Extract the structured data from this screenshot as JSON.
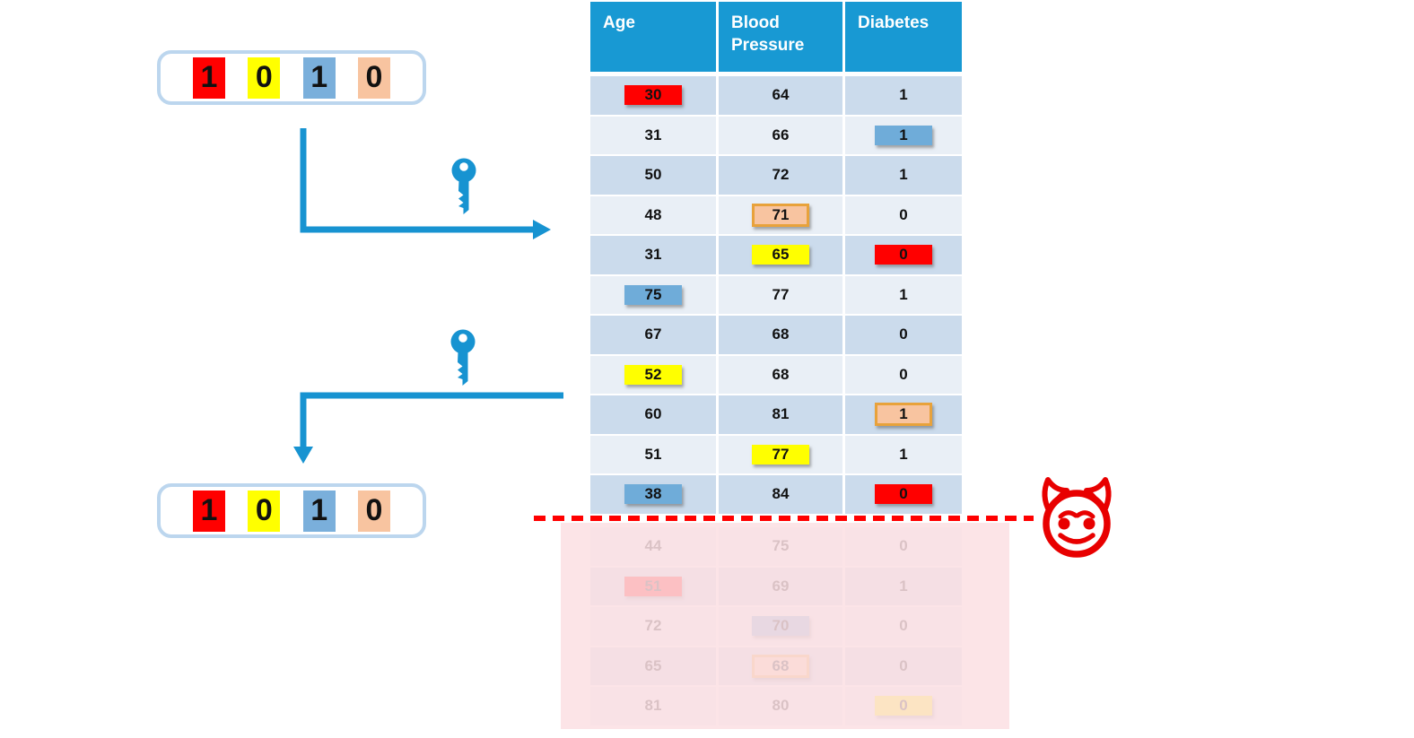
{
  "colors": {
    "header_bg": "#1899D3",
    "row_dark": "#CBDBEC",
    "row_light": "#E9EFF6",
    "arrow_blue": "#1793D1",
    "key_blue": "#1793D1",
    "code_box_border": "#BCD6EE",
    "highlight_red": "#FF0000",
    "highlight_yellow": "#FFFF00",
    "highlight_blue": "#6FACD9",
    "highlight_peach": "#F8C4A0",
    "highlight_peach_border": "#E8A23B",
    "dashed_line_red": "#FF0000",
    "devil_red": "#E80000",
    "redaction_pink": "#FAD6DA"
  },
  "icons": {
    "key": "key-icon",
    "devil": "devil-face-icon"
  },
  "codes": {
    "top": {
      "digits": [
        {
          "v": "1",
          "c": "red"
        },
        {
          "v": "0",
          "c": "yellow"
        },
        {
          "v": "1",
          "c": "blue"
        },
        {
          "v": "0",
          "c": "peach"
        }
      ]
    },
    "bottom": {
      "digits": [
        {
          "v": "1",
          "c": "red"
        },
        {
          "v": "0",
          "c": "yellow"
        },
        {
          "v": "1",
          "c": "blue"
        },
        {
          "v": "0",
          "c": "peach"
        }
      ]
    }
  },
  "table": {
    "headers": [
      {
        "label": "Age"
      },
      {
        "label": "Blood Pressure"
      },
      {
        "label": "Diabetes"
      }
    ],
    "rows": [
      {
        "cells": [
          {
            "v": "30",
            "hl": "red"
          },
          {
            "v": "64"
          },
          {
            "v": "1"
          }
        ]
      },
      {
        "cells": [
          {
            "v": "31"
          },
          {
            "v": "66"
          },
          {
            "v": "1",
            "hl": "blue"
          }
        ]
      },
      {
        "cells": [
          {
            "v": "50"
          },
          {
            "v": "72"
          },
          {
            "v": "1"
          }
        ]
      },
      {
        "cells": [
          {
            "v": "48"
          },
          {
            "v": "71",
            "hl": "peach"
          },
          {
            "v": "0"
          }
        ]
      },
      {
        "cells": [
          {
            "v": "31"
          },
          {
            "v": "65",
            "hl": "yellow"
          },
          {
            "v": "0",
            "hl": "red"
          }
        ]
      },
      {
        "cells": [
          {
            "v": "75",
            "hl": "blue"
          },
          {
            "v": "77"
          },
          {
            "v": "1"
          }
        ]
      },
      {
        "cells": [
          {
            "v": "67"
          },
          {
            "v": "68"
          },
          {
            "v": "0"
          }
        ]
      },
      {
        "cells": [
          {
            "v": "52",
            "hl": "yellow"
          },
          {
            "v": "68"
          },
          {
            "v": "0"
          }
        ]
      },
      {
        "cells": [
          {
            "v": "60"
          },
          {
            "v": "81"
          },
          {
            "v": "1",
            "hl": "peach"
          }
        ]
      },
      {
        "cells": [
          {
            "v": "51"
          },
          {
            "v": "77",
            "hl": "yellow"
          },
          {
            "v": "1"
          }
        ]
      },
      {
        "cells": [
          {
            "v": "38",
            "hl": "blue"
          },
          {
            "v": "84"
          },
          {
            "v": "0",
            "hl": "red"
          }
        ]
      }
    ],
    "faded_rows": [
      {
        "cells": [
          {
            "v": "44"
          },
          {
            "v": "75"
          },
          {
            "v": "0"
          }
        ]
      },
      {
        "cells": [
          {
            "v": "51",
            "hl": "red"
          },
          {
            "v": "69"
          },
          {
            "v": "1"
          }
        ]
      },
      {
        "cells": [
          {
            "v": "72"
          },
          {
            "v": "70",
            "hl": "blue"
          },
          {
            "v": "0"
          }
        ]
      },
      {
        "cells": [
          {
            "v": "65"
          },
          {
            "v": "68",
            "hl": "peach"
          },
          {
            "v": "0"
          }
        ]
      },
      {
        "cells": [
          {
            "v": "81"
          },
          {
            "v": "80"
          },
          {
            "v": "0",
            "hl": "yellow"
          }
        ]
      }
    ]
  }
}
